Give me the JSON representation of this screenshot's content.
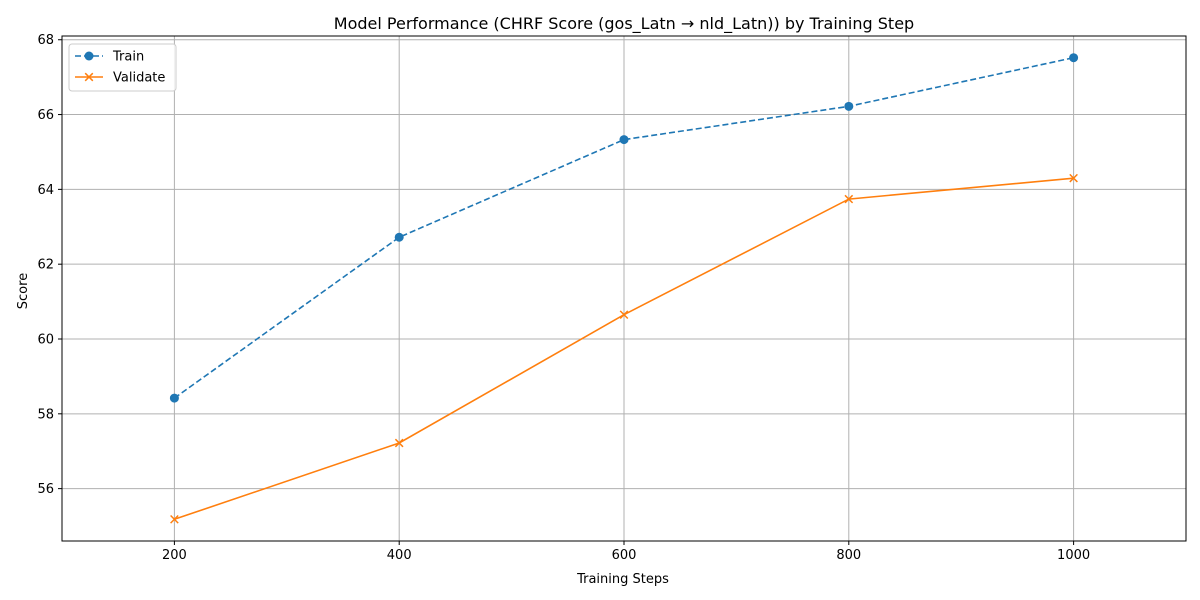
{
  "chart_data": {
    "type": "line",
    "title": "Model Performance (CHRF Score (gos_Latn → nld_Latn)) by Training Step",
    "xlabel": "Training Steps",
    "ylabel": "Score",
    "x": [
      200,
      400,
      600,
      800,
      1000
    ],
    "xticks": [
      "200",
      "400",
      "600",
      "800",
      "1000"
    ],
    "yticks": [
      "56",
      "58",
      "60",
      "62",
      "64",
      "66",
      "68"
    ],
    "xlim": [
      100,
      1100
    ],
    "ylim": [
      54.6,
      68.1
    ],
    "grid": true,
    "legend_position": "top-left",
    "series": [
      {
        "name": "Train",
        "color": "#1f77b4",
        "line_style": "dashed",
        "marker": "circle",
        "values": [
          58.42,
          62.72,
          65.33,
          66.22,
          67.52
        ]
      },
      {
        "name": "Validate",
        "color": "#ff7f0e",
        "line_style": "solid",
        "marker": "x",
        "values": [
          55.18,
          57.22,
          60.65,
          63.74,
          64.3
        ]
      }
    ]
  }
}
